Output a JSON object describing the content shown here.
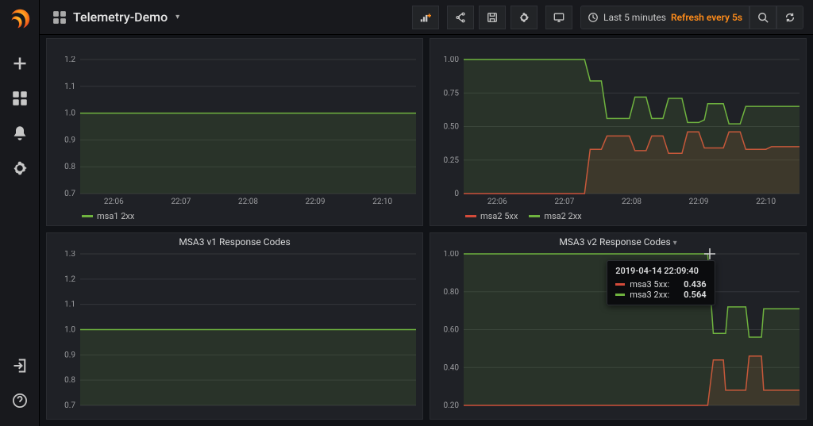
{
  "colors": {
    "bg": "#111317",
    "panel_bg": "#1f2126",
    "panel_border": "#2a2c31",
    "grid": "#34363b",
    "axis_text": "#9a9b9e",
    "green": "#6fb33f",
    "red": "#d44b3a",
    "orange": "#ff8c1a"
  },
  "header": {
    "title": "Telemetry-Demo",
    "add_panel_accent": true,
    "time_label": "Last 5 minutes",
    "refresh_label": "Refresh every 5s"
  },
  "x_axis": {
    "min": 0,
    "max": 300,
    "ticks": [
      {
        "pos": 30,
        "label": "22:06"
      },
      {
        "pos": 90,
        "label": "22:07"
      },
      {
        "pos": 150,
        "label": "22:08"
      },
      {
        "pos": 210,
        "label": "22:09"
      },
      {
        "pos": 270,
        "label": "22:10"
      }
    ]
  },
  "panels": [
    {
      "id": "msa1",
      "title": "",
      "y": {
        "min": 0.7,
        "max": 1.2,
        "ticks": [
          0.7,
          0.8,
          0.9,
          1.0,
          1.1,
          1.2
        ]
      },
      "series": [
        {
          "name": "msa1 2xx",
          "color": "#6fb33f",
          "fill": true,
          "fill_opacity": 0.13,
          "data": [
            [
              0,
              1.0
            ],
            [
              300,
              1.0
            ]
          ]
        }
      ]
    },
    {
      "id": "msa2",
      "title": "",
      "notitlebar": true,
      "y": {
        "min": 0,
        "max": 1.0,
        "ticks": [
          0,
          0.25,
          0.5,
          0.75,
          1.0
        ]
      },
      "series": [
        {
          "name": "msa2 5xx",
          "color": "#d44b3a",
          "fill": true,
          "fill_opacity": 0.13,
          "data": [
            [
              0,
              0
            ],
            [
              108,
              0
            ],
            [
              113,
              0.33
            ],
            [
              123,
              0.33
            ],
            [
              128,
              0.43
            ],
            [
              148,
              0.43
            ],
            [
              153,
              0.32
            ],
            [
              163,
              0.32
            ],
            [
              168,
              0.43
            ],
            [
              178,
              0.43
            ],
            [
              183,
              0.3
            ],
            [
              195,
              0.3
            ],
            [
              200,
              0.46
            ],
            [
              210,
              0.46
            ],
            [
              215,
              0.34
            ],
            [
              232,
              0.34
            ],
            [
              237,
              0.46
            ],
            [
              247,
              0.46
            ],
            [
              252,
              0.33
            ],
            [
              270,
              0.33
            ],
            [
              275,
              0.35
            ],
            [
              300,
              0.35
            ]
          ]
        },
        {
          "name": "msa2 2xx",
          "color": "#6fb33f",
          "fill": true,
          "fill_opacity": 0.13,
          "data": [
            [
              0,
              1.0
            ],
            [
              108,
              1.0
            ],
            [
              113,
              0.84
            ],
            [
              123,
              0.84
            ],
            [
              128,
              0.56
            ],
            [
              148,
              0.56
            ],
            [
              153,
              0.72
            ],
            [
              163,
              0.72
            ],
            [
              168,
              0.56
            ],
            [
              178,
              0.56
            ],
            [
              183,
              0.71
            ],
            [
              195,
              0.71
            ],
            [
              200,
              0.53
            ],
            [
              210,
              0.53
            ],
            [
              215,
              0.55
            ],
            [
              218,
              0.67
            ],
            [
              232,
              0.67
            ],
            [
              237,
              0.52
            ],
            [
              247,
              0.52
            ],
            [
              252,
              0.65
            ],
            [
              300,
              0.65
            ]
          ]
        }
      ]
    },
    {
      "id": "msa3v1",
      "title": "MSA3 v1 Response Codes",
      "y": {
        "min": 0.7,
        "max": 1.3,
        "ticks": [
          0.7,
          0.8,
          0.9,
          1.0,
          1.1,
          1.2,
          1.3
        ]
      },
      "clip_pct": 0.94,
      "series": [
        {
          "name": "msa3 2xx",
          "color": "#6fb33f",
          "fill": true,
          "fill_opacity": 0.13,
          "data": [
            [
              0,
              1.0
            ],
            [
              300,
              1.0
            ]
          ]
        }
      ],
      "no_legend": true
    },
    {
      "id": "msa3v2",
      "title": "MSA3 v2 Response Codes",
      "title_caret": true,
      "y": {
        "min": 0.2,
        "max": 1.0,
        "ticks": [
          0.2,
          0.4,
          0.6,
          0.8,
          1.0
        ]
      },
      "clip_pct": 0.94,
      "series": [
        {
          "name": "msa3 5xx",
          "color": "#d44b3a",
          "fill": true,
          "fill_opacity": 0.13,
          "data": [
            [
              0,
              0.2
            ],
            [
              218,
              0.2
            ],
            [
              223,
              0.44
            ],
            [
              232,
              0.44
            ],
            [
              234,
              0.28
            ],
            [
              252,
              0.28
            ],
            [
              255,
              0.46
            ],
            [
              266,
              0.46
            ],
            [
              268,
              0.28
            ],
            [
              300,
              0.28
            ]
          ]
        },
        {
          "name": "msa3 2xx",
          "color": "#6fb33f",
          "fill": true,
          "fill_opacity": 0.13,
          "data": [
            [
              0,
              1.0
            ],
            [
              218,
              1.0
            ],
            [
              223,
              0.58
            ],
            [
              234,
              0.58
            ],
            [
              236,
              0.72
            ],
            [
              252,
              0.72
            ],
            [
              255,
              0.56
            ],
            [
              266,
              0.56
            ],
            [
              268,
              0.71
            ],
            [
              300,
              0.71
            ]
          ]
        }
      ],
      "no_legend": true,
      "tooltip": {
        "x": 220,
        "timestamp": "2019-04-14 22:09:40",
        "rows": [
          {
            "swatch": "#d44b3a",
            "label": "msa3 5xx:",
            "value": "0.436"
          },
          {
            "swatch": "#6fb33f",
            "label": "msa3 2xx:",
            "value": "0.564"
          }
        ]
      }
    }
  ]
}
